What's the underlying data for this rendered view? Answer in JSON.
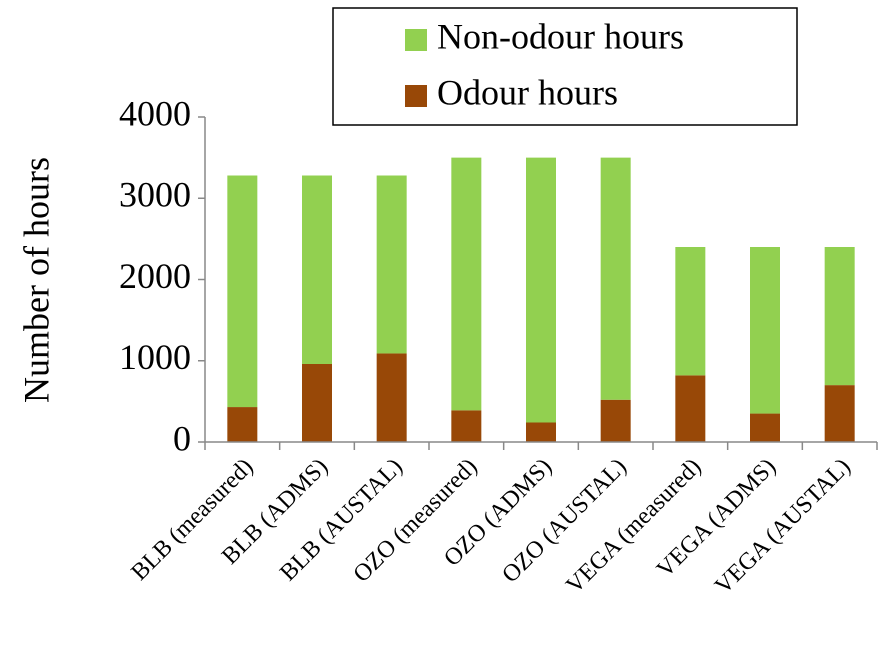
{
  "chart_data": {
    "type": "stacked_bar",
    "y_label": "Number of hours",
    "categories": [
      "BLB (measured)",
      "BLB (ADMS)",
      "BLB (AUSTAL)",
      "OZO (measured)",
      "OZO (ADMS)",
      "OZO (AUSTAL)",
      "VEGA (measured)",
      "VEGA (ADMS)",
      "VEGA (AUSTAL)"
    ],
    "series": [
      {
        "name": "Odour hours",
        "color": "#984807",
        "values": [
          430,
          960,
          1090,
          390,
          240,
          520,
          820,
          350,
          700
        ]
      },
      {
        "name": "Non-odour hours",
        "color": "#92d050",
        "values": [
          2850,
          2320,
          2190,
          3110,
          3260,
          2980,
          1580,
          2050,
          1700
        ]
      }
    ],
    "ylim": [
      0,
      4000
    ],
    "yticks": [
      0,
      1000,
      2000,
      3000,
      4000
    ]
  }
}
